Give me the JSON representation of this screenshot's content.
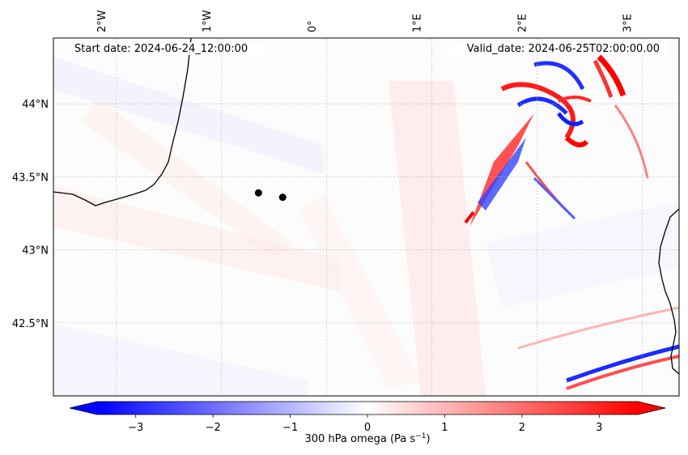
{
  "map": {
    "start_label": "Start date: 2024-06-24_12:00:00",
    "valid_label": "Valid_date: 2024-06-25T02:00:00.00",
    "lon_ticks": [
      "2°W",
      "1°W",
      "0°",
      "1°E",
      "2°E",
      "3°E"
    ],
    "lat_ticks": [
      "44°N",
      "43.5°N",
      "43°N",
      "42.5°N"
    ],
    "extent": {
      "lon_min": -2.6,
      "lon_max": 3.35,
      "lat_min": 42.0,
      "lat_max": 44.45
    },
    "points": [
      {
        "name": "point-1",
        "lon": -0.65,
        "lat": 43.39
      },
      {
        "name": "point-2",
        "lon": -0.42,
        "lat": 43.36
      }
    ]
  },
  "colorbar": {
    "label": "300 hPa omega (Pa s",
    "label_superscript": "−1",
    "label_suffix": ")",
    "tick_labels": [
      "−3",
      "−2",
      "−1",
      "0",
      "1",
      "2",
      "3"
    ],
    "min": -3.5,
    "max": 3.5,
    "colors": {
      "negative": "#0000ff",
      "zero": "#ffffff",
      "positive": "#ff0000"
    }
  }
}
